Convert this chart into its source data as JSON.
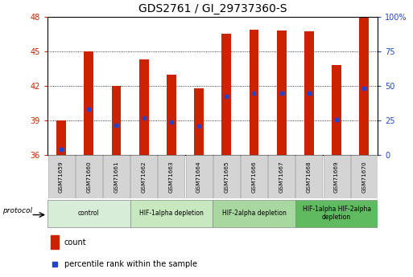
{
  "title": "GDS2761 / GI_29737360-S",
  "samples": [
    "GSM71659",
    "GSM71660",
    "GSM71661",
    "GSM71662",
    "GSM71663",
    "GSM71664",
    "GSM71665",
    "GSM71666",
    "GSM71667",
    "GSM71668",
    "GSM71669",
    "GSM71670"
  ],
  "bar_tops": [
    39.0,
    45.0,
    42.0,
    44.3,
    43.0,
    41.8,
    46.5,
    46.9,
    46.8,
    46.7,
    43.8,
    48.0
  ],
  "bar_base": 36,
  "blue_positions": [
    36.5,
    40.0,
    38.6,
    39.2,
    38.9,
    38.5,
    41.1,
    41.4,
    41.4,
    41.4,
    39.1,
    41.8
  ],
  "ylim_left": [
    36,
    48
  ],
  "yticks_left": [
    36,
    39,
    42,
    45,
    48
  ],
  "ylim_right": [
    0,
    100
  ],
  "yticks_right": [
    0,
    25,
    50,
    75,
    100
  ],
  "yticklabels_right": [
    "0",
    "25",
    "50",
    "75",
    "100%"
  ],
  "bar_color": "#cc2200",
  "blue_color": "#2244cc",
  "bar_width": 0.35,
  "groups": [
    {
      "label": "control",
      "samples": [
        0,
        1,
        2
      ],
      "color": "#d8edd8"
    },
    {
      "label": "HIF-1alpha depletion",
      "samples": [
        3,
        4,
        5
      ],
      "color": "#c8e8c0"
    },
    {
      "label": "HIF-2alpha depletion",
      "samples": [
        6,
        7,
        8
      ],
      "color": "#a8d8a0"
    },
    {
      "label": "HIF-1alpha HIF-2alpha\ndepletion",
      "samples": [
        9,
        10,
        11
      ],
      "color": "#60bb60"
    }
  ],
  "left_tick_color": "#cc2200",
  "right_tick_color": "#2244cc",
  "legend_count_label": "count",
  "legend_pct_label": "percentile rank within the sample",
  "protocol_label": "protocol",
  "tick_fontsize": 7,
  "label_fontsize": 5.5,
  "title_fontsize": 10
}
